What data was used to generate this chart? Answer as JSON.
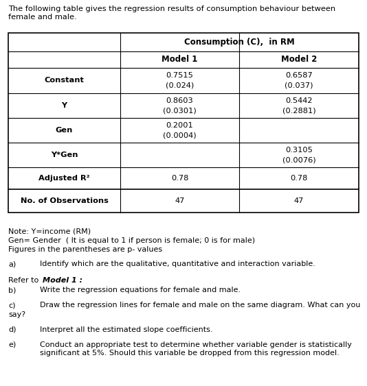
{
  "title_text": "The following table gives the regression results of consumption behaviour between\nfemale and male.",
  "header_main": "Consumption (C),  in RM",
  "header_col2": "Model 1",
  "header_col3": "Model 2",
  "rows": [
    {
      "label": "Constant",
      "m1v": "0.7515",
      "m1p": "(0.024)",
      "m2v": "0.6587",
      "m2p": "(0.037)"
    },
    {
      "label": "Y",
      "m1v": "0.8603",
      "m1p": "(0.0301)",
      "m2v": "0.5442",
      "m2p": "(0.2881)"
    },
    {
      "label": "Gen",
      "m1v": "0.2001",
      "m1p": "(0.0004)",
      "m2v": "",
      "m2p": ""
    },
    {
      "label": "Y*Gen",
      "m1v": "",
      "m1p": "",
      "m2v": "0.3105",
      "m2p": "(0.0076)"
    },
    {
      "label": "Adjusted R²",
      "m1v": "0.78",
      "m1p": "",
      "m2v": "0.78",
      "m2p": ""
    },
    {
      "label": "No. of Observations",
      "m1v": "47",
      "m1p": "",
      "m2v": "47",
      "m2p": ""
    }
  ],
  "notes": [
    "Note: Y=income (RM)",
    "Gen= Gender  ( It is equal to 1 if person is female; 0 is for male)",
    "Figures in the parentheses are p- values"
  ],
  "bg_color": "#ffffff",
  "text_color": "#000000",
  "font_size": 7.8
}
